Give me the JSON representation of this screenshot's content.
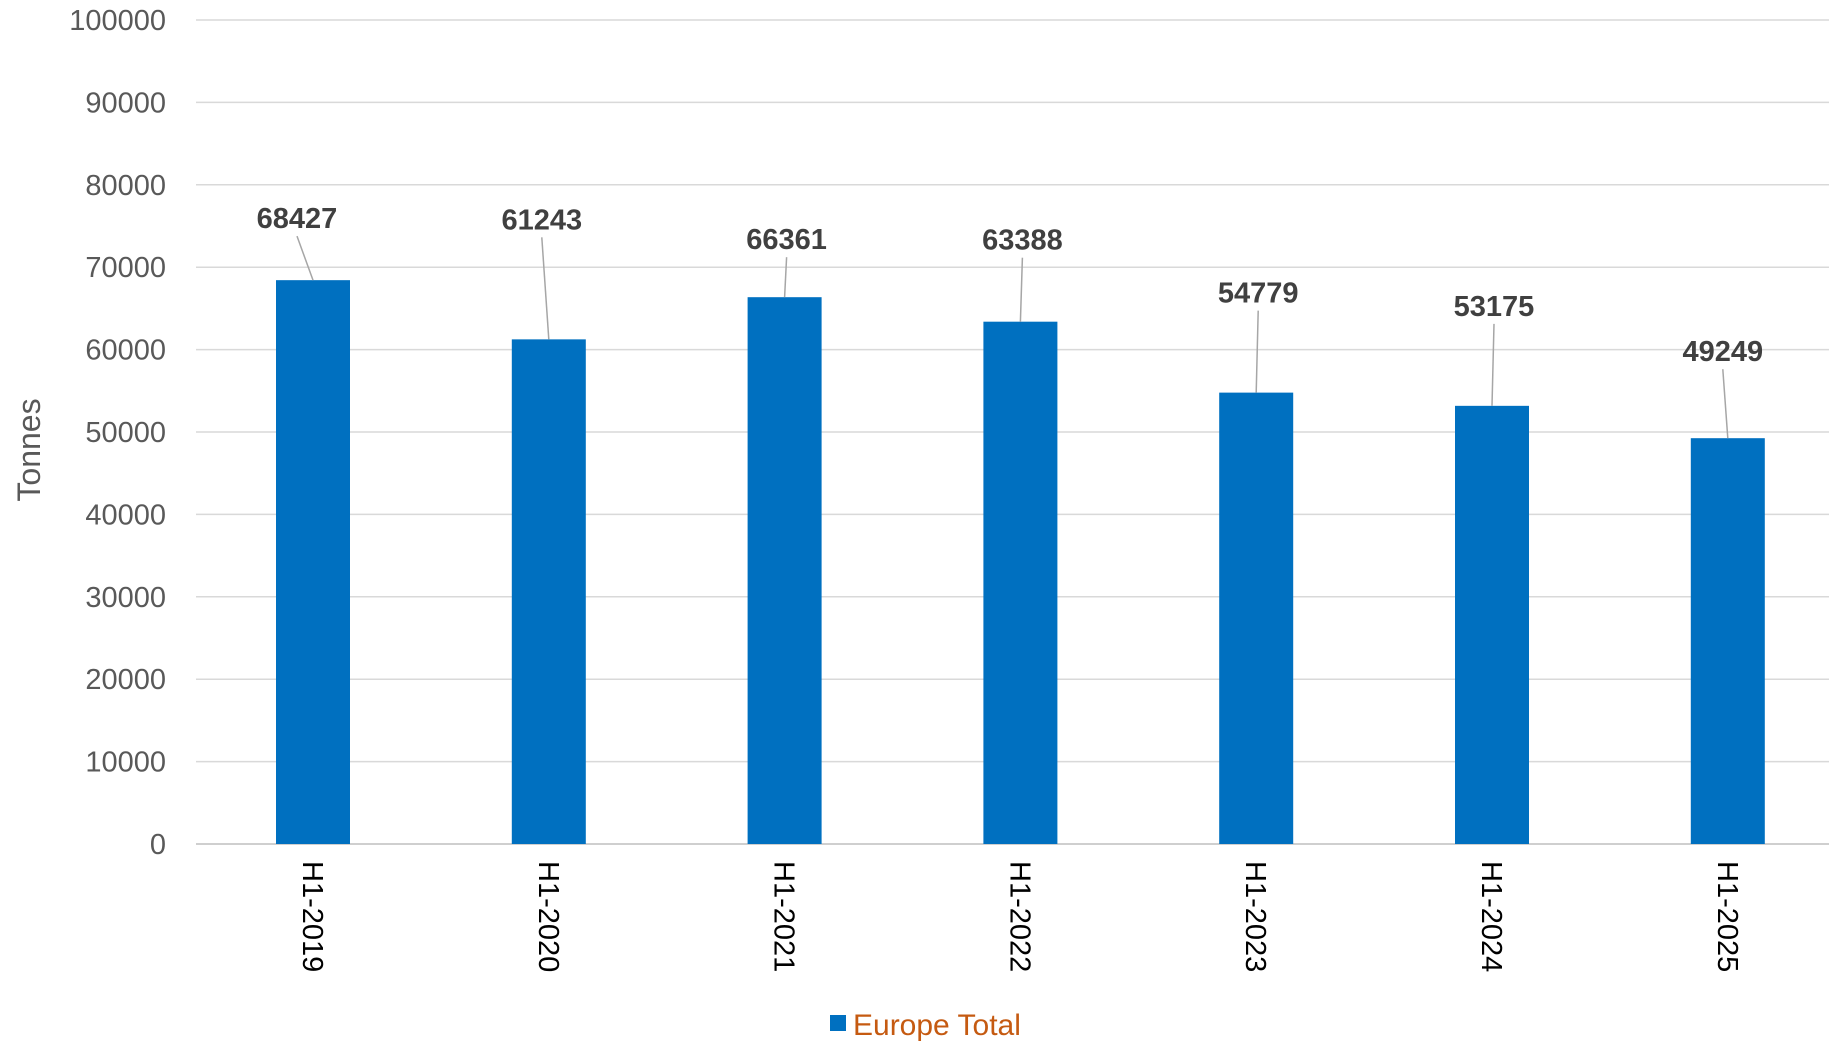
{
  "chart_data": {
    "type": "bar",
    "title": "",
    "xlabel": "",
    "ylabel": "Tonnes",
    "categories": [
      "H1-2019",
      "H1-2020",
      "H1-2021",
      "H1-2022",
      "H1-2023",
      "H1-2024",
      "H1-2025"
    ],
    "series": [
      {
        "name": "Europe Total",
        "values": [
          68427,
          61243,
          66361,
          63388,
          54779,
          53175,
          49249
        ]
      }
    ],
    "ylim": [
      0,
      100000
    ],
    "yticks": [
      0,
      10000,
      20000,
      30000,
      40000,
      50000,
      60000,
      70000,
      80000,
      90000,
      100000
    ],
    "grid": true,
    "legend_position": "bottom",
    "colors": {
      "bar": "#0070C0",
      "legend_text": "#C55A11",
      "grid": "#D9D9D9",
      "leader": "#A6A6A6"
    }
  }
}
